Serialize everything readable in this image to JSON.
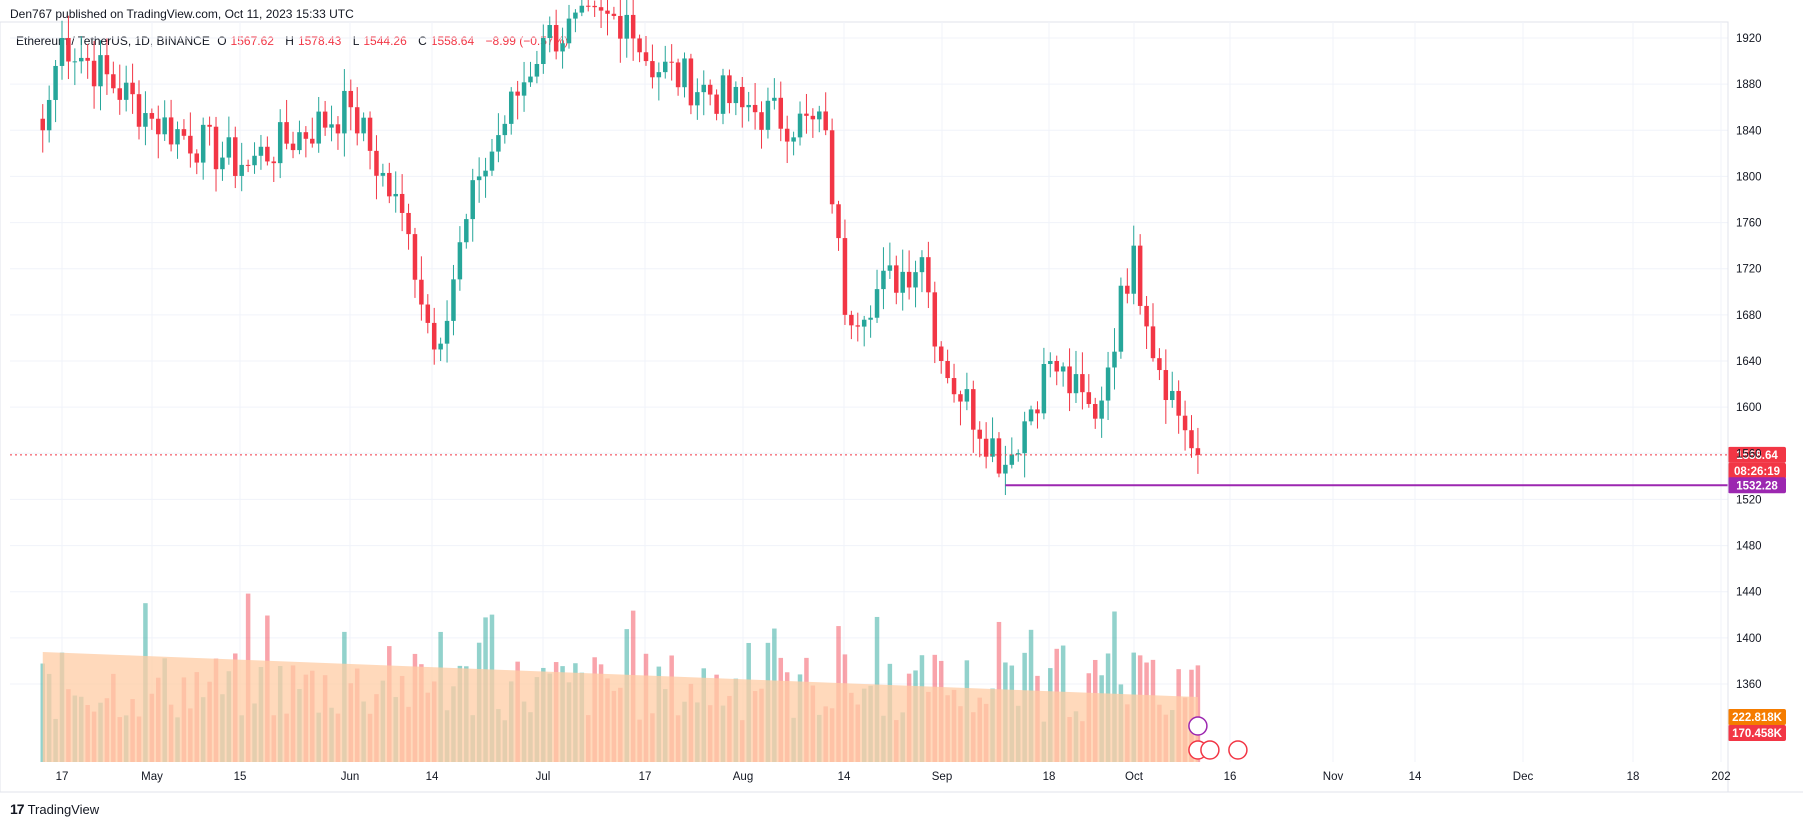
{
  "header": {
    "published_by": "Den767 published on TradingView.com, Oct 11, 2023 15:33 UTC"
  },
  "legend": {
    "symbol": "Ethereum / TetherUS, 1D, BINANCE",
    "open_label": "O",
    "open": "1567.62",
    "high_label": "H",
    "high": "1578.43",
    "low_label": "L",
    "low": "1544.26",
    "close_label": "C",
    "close": "1558.64",
    "change": "−8.99 (−0.57%)"
  },
  "footer": {
    "brand": "TradingView",
    "logo": "tradingview-logo-icon"
  },
  "colors": {
    "up": "#26a69a",
    "down": "#f23645",
    "level": "#9c27b0",
    "volume_ma": "#ffcca4",
    "volume_ma_label": "#f57c00"
  },
  "chart_data": {
    "type": "candlestick",
    "y_price_range": [
      1440,
      1935
    ],
    "y_ticks": [
      1920,
      1880,
      1840,
      1800,
      1760,
      1720,
      1680,
      1640,
      1600,
      1560,
      1520,
      1480,
      1440,
      1400,
      1360
    ],
    "x_ticks": [
      "17",
      "May",
      "15",
      "Jun",
      "14",
      "Jul",
      "17",
      "Aug",
      "14",
      "Sep",
      "18",
      "Oct",
      "16",
      "Nov",
      "14",
      "Dec",
      "18",
      "202"
    ],
    "last_price_label": "1558.64",
    "countdown_label": "08:26:19",
    "horizontal_level": {
      "value": 1532.28,
      "label": "1532.28"
    },
    "volume_labels": {
      "ma": "222.818K",
      "last": "170.458K"
    },
    "key_points": [
      {
        "date": "Apr 14",
        "close": 1840
      },
      {
        "date": "Apr 17",
        "close": 1920
      },
      {
        "date": "May 1",
        "close": 1850
      },
      {
        "date": "May 15",
        "close": 1810
      },
      {
        "date": "Jun 1",
        "close": 1860
      },
      {
        "date": "Jun 10",
        "close": 1750
      },
      {
        "date": "Jun 14",
        "close": 1650
      },
      {
        "date": "Jun 21",
        "close": 1800
      },
      {
        "date": "Jul 1",
        "close": 1920
      },
      {
        "date": "Jul 14",
        "close": 1940
      },
      {
        "date": "Jul 17",
        "close": 1900
      },
      {
        "date": "Aug 1",
        "close": 1860
      },
      {
        "date": "Aug 14",
        "close": 1840
      },
      {
        "date": "Aug 17",
        "close": 1680
      },
      {
        "date": "Aug 29",
        "close": 1730
      },
      {
        "date": "Sep 1",
        "close": 1640
      },
      {
        "date": "Sep 11",
        "close": 1550
      },
      {
        "date": "Sep 18",
        "close": 1640
      },
      {
        "date": "Sep 25",
        "close": 1590
      },
      {
        "date": "Oct 1",
        "close": 1740
      },
      {
        "date": "Oct 3",
        "close": 1670
      },
      {
        "date": "Oct 9",
        "close": 1580
      },
      {
        "date": "Oct 11",
        "close": 1558.64
      }
    ]
  }
}
